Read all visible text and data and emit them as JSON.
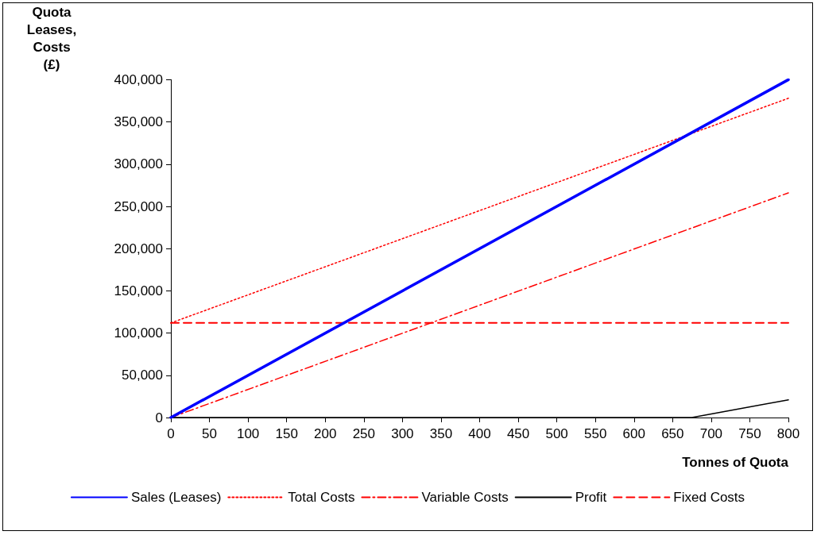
{
  "chart_data": {
    "type": "line",
    "xlabel": "Tonnes of Quota",
    "ylabel": "Quota Leases, Costs (£)",
    "xlim": [
      0,
      800
    ],
    "xticks": [
      0,
      50,
      100,
      150,
      200,
      250,
      300,
      350,
      400,
      450,
      500,
      550,
      600,
      650,
      700,
      750,
      800
    ],
    "ylim": [
      0,
      400000
    ],
    "yticks": [
      0,
      {
        "value": 50000,
        "label": "50,000"
      },
      {
        "value": 100000,
        "label": "100,000"
      },
      {
        "value": 150000,
        "label": "150,000"
      },
      {
        "value": 200000,
        "label": "200,000"
      },
      {
        "value": 250000,
        "label": "250,000"
      },
      {
        "value": 300000,
        "label": "300,000"
      },
      {
        "value": 350000,
        "label": "350,000"
      },
      {
        "value": 400000,
        "label": "400,000"
      }
    ],
    "grid": false,
    "legend": "bottom",
    "marker": "none",
    "series": [
      {
        "name": "Sales (Leases)",
        "color": "#0000ff",
        "x": [
          0,
          800
        ],
        "values": [
          0,
          400000
        ],
        "line_style": "solid"
      },
      {
        "name": "Total Costs",
        "color": "#ff0000",
        "x": [
          0,
          800
        ],
        "values": [
          112000,
          378000
        ],
        "line_style": "dotted"
      },
      {
        "name": "Variable Costs",
        "color": "#ff0000",
        "x": [
          0,
          800
        ],
        "values": [
          0,
          266000
        ],
        "line_style": "dashdot"
      },
      {
        "name": "Profit",
        "color": "#000000",
        "x": [
          0,
          675,
          800
        ],
        "values": [
          0,
          0,
          21000
        ],
        "line_style": "solid"
      },
      {
        "name": "Fixed Costs",
        "color": "#ff0000",
        "x": [
          0,
          800
        ],
        "values": [
          112000,
          112000
        ],
        "line_style": "dashed"
      }
    ]
  }
}
